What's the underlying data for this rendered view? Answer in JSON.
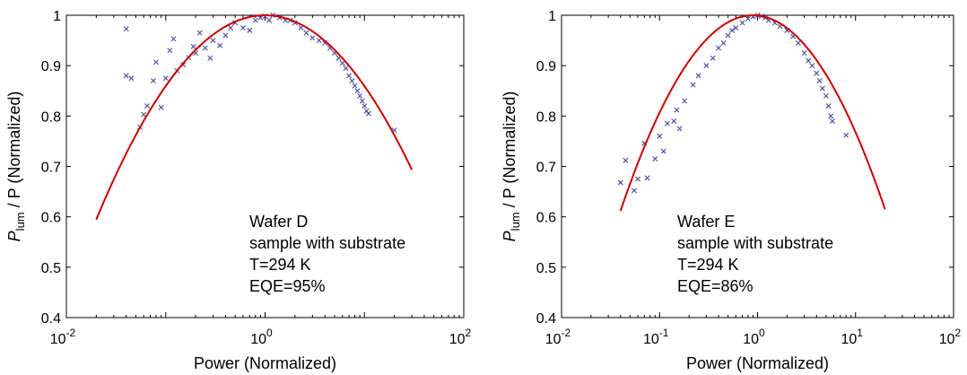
{
  "chart_data": [
    {
      "type": "scatter",
      "xlabel": "Power (Normalized)",
      "ylabel_main": "P",
      "ylabel_sub": "lum",
      "ylabel_rest": " / P (Normalized)",
      "xscale": "log",
      "xlim": [
        0.01,
        100
      ],
      "ylim": [
        0.4,
        1.0
      ],
      "x_ticks": [
        {
          "base": "10",
          "exp": "-2"
        },
        {
          "base": "10",
          "exp": "0"
        },
        {
          "base": "10",
          "exp": "2"
        }
      ],
      "y_ticks": [
        "0.4",
        "0.5",
        "0.6",
        "0.7",
        "0.8",
        "0.9",
        "1"
      ],
      "grid": false,
      "annotations": [
        "Wafer D",
        "sample with substrate",
        "T=294 K",
        "EQE=95%"
      ],
      "series": [
        {
          "kind": "scatter",
          "marker": "x",
          "color": "#4a4a9c",
          "points": [
            [
              0.04,
              0.973
            ],
            [
              0.04,
              0.88
            ],
            [
              0.045,
              0.875
            ],
            [
              0.055,
              0.778
            ],
            [
              0.06,
              0.803
            ],
            [
              0.065,
              0.82
            ],
            [
              0.075,
              0.87
            ],
            [
              0.08,
              0.907
            ],
            [
              0.09,
              0.817
            ],
            [
              0.1,
              0.875
            ],
            [
              0.11,
              0.93
            ],
            [
              0.12,
              0.953
            ],
            [
              0.13,
              0.89
            ],
            [
              0.15,
              0.902
            ],
            [
              0.17,
              0.916
            ],
            [
              0.19,
              0.938
            ],
            [
              0.2,
              0.925
            ],
            [
              0.22,
              0.965
            ],
            [
              0.25,
              0.935
            ],
            [
              0.28,
              0.915
            ],
            [
              0.3,
              0.95
            ],
            [
              0.35,
              0.94
            ],
            [
              0.4,
              0.96
            ],
            [
              0.45,
              0.975
            ],
            [
              0.5,
              0.985
            ],
            [
              0.6,
              0.975
            ],
            [
              0.7,
              0.97
            ],
            [
              0.8,
              0.99
            ],
            [
              0.9,
              0.995
            ],
            [
              1.0,
              0.998
            ],
            [
              1.1,
              0.99
            ],
            [
              1.2,
              1.0
            ],
            [
              1.4,
              0.995
            ],
            [
              1.6,
              0.99
            ],
            [
              1.8,
              0.99
            ],
            [
              2.0,
              0.985
            ],
            [
              2.3,
              0.975
            ],
            [
              2.6,
              0.965
            ],
            [
              3.0,
              0.955
            ],
            [
              3.5,
              0.95
            ],
            [
              4.0,
              0.945
            ],
            [
              4.5,
              0.935
            ],
            [
              5.0,
              0.925
            ],
            [
              5.5,
              0.915
            ],
            [
              6.0,
              0.905
            ],
            [
              6.5,
              0.895
            ],
            [
              7.0,
              0.88
            ],
            [
              7.5,
              0.87
            ],
            [
              8.0,
              0.86
            ],
            [
              8.5,
              0.85
            ],
            [
              9.0,
              0.84
            ],
            [
              9.5,
              0.83
            ],
            [
              10.0,
              0.82
            ],
            [
              10.5,
              0.81
            ],
            [
              11.0,
              0.805
            ],
            [
              20.0,
              0.772
            ]
          ]
        },
        {
          "kind": "line",
          "color": "#cc0000",
          "curve": {
            "x_from": 0.02,
            "x_to": 30,
            "peak_x": 1.0,
            "peak_y": 1.0,
            "k": 0.1405
          }
        }
      ]
    },
    {
      "type": "scatter",
      "xlabel": "Power (Normalized)",
      "ylabel_main": "P",
      "ylabel_sub": "lum",
      "ylabel_rest": " / P (Normalized)",
      "xscale": "log",
      "xlim": [
        0.01,
        100
      ],
      "ylim": [
        0.4,
        1.0
      ],
      "x_ticks": [
        {
          "base": "10",
          "exp": "-2"
        },
        {
          "base": "10",
          "exp": "-1"
        },
        {
          "base": "10",
          "exp": "0"
        },
        {
          "base": "10",
          "exp": "1"
        },
        {
          "base": "10",
          "exp": "2"
        }
      ],
      "y_ticks": [
        "0.4",
        "0.5",
        "0.6",
        "0.7",
        "0.8",
        "0.9",
        "1"
      ],
      "grid": false,
      "annotations": [
        "Wafer E",
        "sample with substrate",
        "T=294 K",
        "EQE=86%"
      ],
      "series": [
        {
          "kind": "scatter",
          "marker": "x",
          "color": "#4a4a9c",
          "points": [
            [
              0.04,
              0.668
            ],
            [
              0.045,
              0.712
            ],
            [
              0.055,
              0.652
            ],
            [
              0.06,
              0.675
            ],
            [
              0.07,
              0.746
            ],
            [
              0.075,
              0.677
            ],
            [
              0.09,
              0.715
            ],
            [
              0.1,
              0.76
            ],
            [
              0.11,
              0.73
            ],
            [
              0.12,
              0.785
            ],
            [
              0.14,
              0.79
            ],
            [
              0.15,
              0.812
            ],
            [
              0.16,
              0.775
            ],
            [
              0.18,
              0.83
            ],
            [
              0.22,
              0.862
            ],
            [
              0.25,
              0.88
            ],
            [
              0.3,
              0.9
            ],
            [
              0.35,
              0.915
            ],
            [
              0.4,
              0.935
            ],
            [
              0.45,
              0.945
            ],
            [
              0.5,
              0.96
            ],
            [
              0.55,
              0.97
            ],
            [
              0.6,
              0.975
            ],
            [
              0.7,
              0.985
            ],
            [
              0.8,
              0.993
            ],
            [
              0.9,
              0.997
            ],
            [
              1.0,
              1.0
            ],
            [
              1.1,
              0.998
            ],
            [
              1.2,
              0.995
            ],
            [
              1.3,
              0.99
            ],
            [
              1.5,
              0.985
            ],
            [
              1.7,
              0.978
            ],
            [
              2.0,
              0.97
            ],
            [
              2.3,
              0.958
            ],
            [
              2.6,
              0.945
            ],
            [
              3.0,
              0.925
            ],
            [
              3.3,
              0.91
            ],
            [
              3.6,
              0.9
            ],
            [
              4.0,
              0.885
            ],
            [
              4.3,
              0.87
            ],
            [
              4.6,
              0.855
            ],
            [
              5.0,
              0.84
            ],
            [
              5.3,
              0.82
            ],
            [
              5.6,
              0.8
            ],
            [
              5.8,
              0.79
            ],
            [
              8.0,
              0.762
            ]
          ]
        },
        {
          "kind": "line",
          "color": "#cc0000",
          "curve": {
            "x_from": 0.04,
            "x_to": 20,
            "peak_x": 0.9,
            "peak_y": 1.0,
            "k": 0.2123
          }
        }
      ]
    }
  ]
}
